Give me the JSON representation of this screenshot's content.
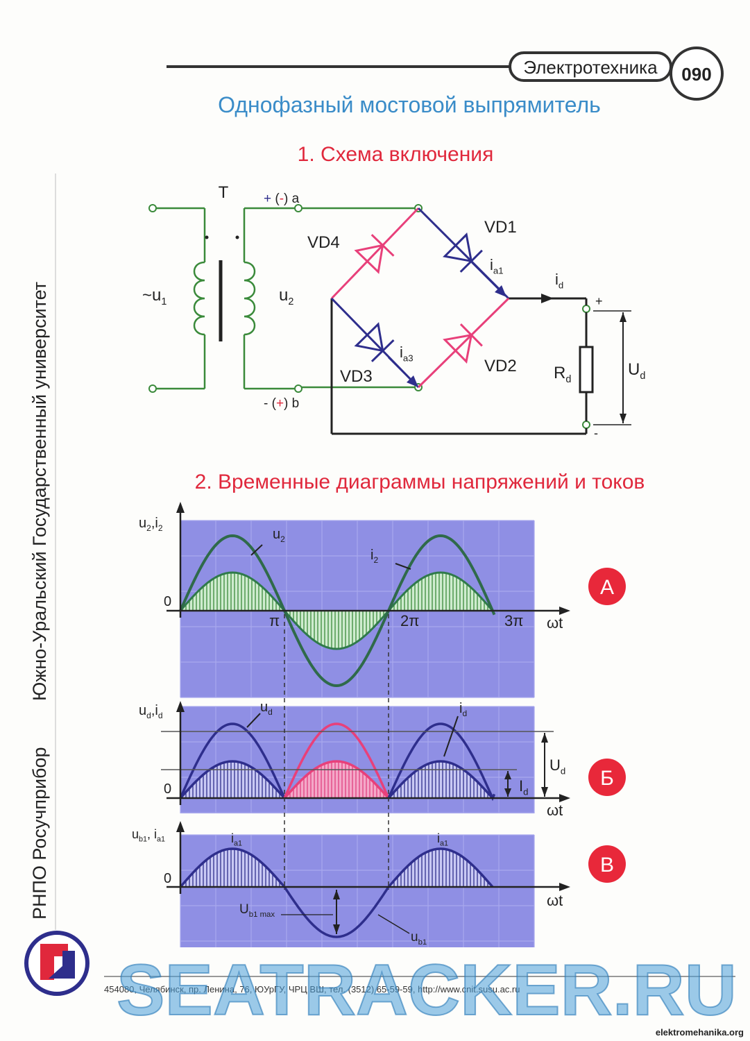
{
  "header": {
    "subject": "Электротехника",
    "number": "090"
  },
  "title": "Однофазный мостовой выпрямитель",
  "circuit": {
    "title": "1. Схема включения",
    "transformer": [
      "T"
    ],
    "u1": [
      "~u",
      "1"
    ],
    "u2": [
      "u",
      "2"
    ],
    "node_a": [
      "+",
      " (",
      "-",
      ") a"
    ],
    "node_b": [
      "- (",
      "+",
      ") b"
    ],
    "vd1": [
      "VD1"
    ],
    "vd2": [
      "VD2"
    ],
    "vd3": [
      "VD3"
    ],
    "vd4": [
      "VD4"
    ],
    "ia1": [
      "i",
      "a1"
    ],
    "ia3": [
      "i",
      "a3"
    ],
    "id": [
      "i",
      "d"
    ],
    "rd": [
      "R",
      "d"
    ],
    "ud": [
      "U",
      "d"
    ],
    "plus": [
      "+"
    ],
    "minus": [
      "-"
    ]
  },
  "diagrams": {
    "title": "2. Временные диаграммы напряжений и токов",
    "a": {
      "ylabel": [
        "u",
        "2",
        ",i",
        "2"
      ],
      "u2": [
        "u",
        "2"
      ],
      "i2": [
        "i",
        "2"
      ],
      "zero": [
        "0"
      ],
      "pi": [
        "π"
      ],
      "pi2": [
        "2π"
      ],
      "pi3": [
        "3π"
      ],
      "xlabel": [
        "ωt"
      ],
      "badge": [
        "А"
      ]
    },
    "b": {
      "ylabel": [
        "u",
        "d",
        ",i",
        "d"
      ],
      "ud": [
        "u",
        "d"
      ],
      "id": [
        "i",
        "d"
      ],
      "zero": [
        "0"
      ],
      "ud_avg": [
        "U",
        "d"
      ],
      "id_avg": [
        "I",
        "d"
      ],
      "xlabel": [
        "ωt"
      ],
      "badge": [
        "Б"
      ]
    },
    "c": {
      "ylabel": [
        "u",
        "b1",
        ", i",
        "a1"
      ],
      "ia1_first": [
        "i",
        "a1"
      ],
      "ia1_second": [
        "i",
        "a1"
      ],
      "zero": [
        "0"
      ],
      "ub1max": [
        "U",
        "b1 max"
      ],
      "ub1": [
        "u",
        "b1"
      ],
      "xlabel": [
        "ωt"
      ],
      "badge": [
        "В"
      ]
    }
  },
  "side": {
    "university": "Южно-Уральский Государственный университет",
    "org": "РНПО Росучприбор"
  },
  "footer": {
    "address": "454080, Челябинск, пр. Ленина, 76, ЮУрГУ, ЧРЦ ВШ, тел. (3512) 65-59-59, http://www.cnit.susu.ac.ru",
    "site": "elektromehanika.org",
    "watermark": "SEATRACKER.RU"
  }
}
